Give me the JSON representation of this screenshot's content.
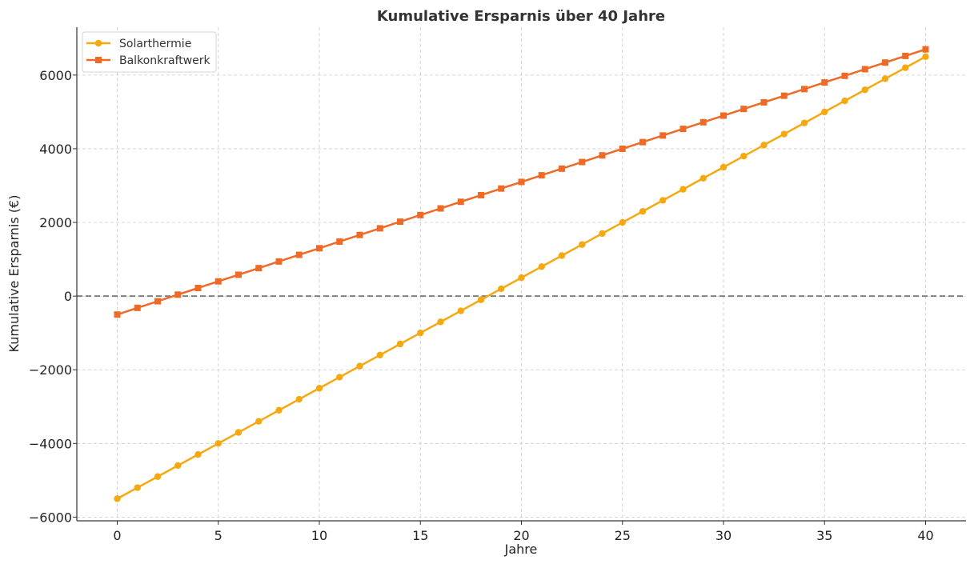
{
  "chart_data": {
    "type": "line",
    "title": "Kumulative Ersparnis über 40 Jahre",
    "xlabel": "Jahre",
    "ylabel": "Kumulative Ersparnis (€)",
    "xlim": [
      -2,
      42
    ],
    "ylim": [
      -6100,
      7300
    ],
    "xticks": [
      0,
      5,
      10,
      15,
      20,
      25,
      30,
      35,
      40
    ],
    "yticks": [
      -6000,
      -4000,
      -2000,
      0,
      2000,
      4000,
      6000
    ],
    "ytick_labels": [
      "−6000",
      "−4000",
      "−2000",
      "0",
      "2000",
      "4000",
      "6000"
    ],
    "grid": true,
    "legend_position": "top-left",
    "reference_line": {
      "y": 0,
      "style": "dashed",
      "color": "#808080"
    },
    "x": [
      0,
      1,
      2,
      3,
      4,
      5,
      6,
      7,
      8,
      9,
      10,
      11,
      12,
      13,
      14,
      15,
      16,
      17,
      18,
      19,
      20,
      21,
      22,
      23,
      24,
      25,
      26,
      27,
      28,
      29,
      30,
      31,
      32,
      33,
      34,
      35,
      36,
      37,
      38,
      39,
      40
    ],
    "series": [
      {
        "name": "Solarthermie",
        "color": "#f5a90f",
        "marker": "circle",
        "values": [
          -5500,
          -5200,
          -4900,
          -4600,
          -4300,
          -4000,
          -3700,
          -3400,
          -3100,
          -2800,
          -2500,
          -2200,
          -1900,
          -1600,
          -1300,
          -1000,
          -700,
          -400,
          -100,
          200,
          500,
          800,
          1100,
          1400,
          1700,
          2000,
          2300,
          2600,
          2900,
          3200,
          3500,
          3800,
          4100,
          4400,
          4700,
          5000,
          5300,
          5600,
          5900,
          6200,
          6500
        ]
      },
      {
        "name": "Balkonkraftwerk",
        "color": "#ef6a26",
        "marker": "square",
        "values": [
          -500,
          -320,
          -140,
          40,
          220,
          400,
          580,
          760,
          940,
          1120,
          1300,
          1480,
          1660,
          1840,
          2020,
          2200,
          2380,
          2560,
          2740,
          2920,
          3100,
          3280,
          3460,
          3640,
          3820,
          4000,
          4180,
          4360,
          4540,
          4720,
          4900,
          5080,
          5260,
          5440,
          5620,
          5800,
          5980,
          6160,
          6340,
          6520,
          6700
        ]
      }
    ]
  }
}
